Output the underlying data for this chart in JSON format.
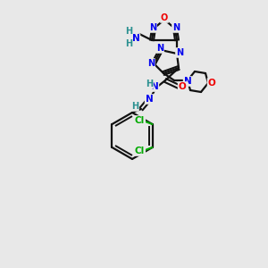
{
  "bg_color": "#e8e8e8",
  "atom_colors": {
    "N": "#0000ee",
    "O": "#ee0000",
    "Cl": "#00aa00",
    "C": "#111111",
    "H": "#2a9090"
  },
  "bond_color": "#111111",
  "figsize": [
    3.0,
    3.0
  ],
  "dpi": 100
}
